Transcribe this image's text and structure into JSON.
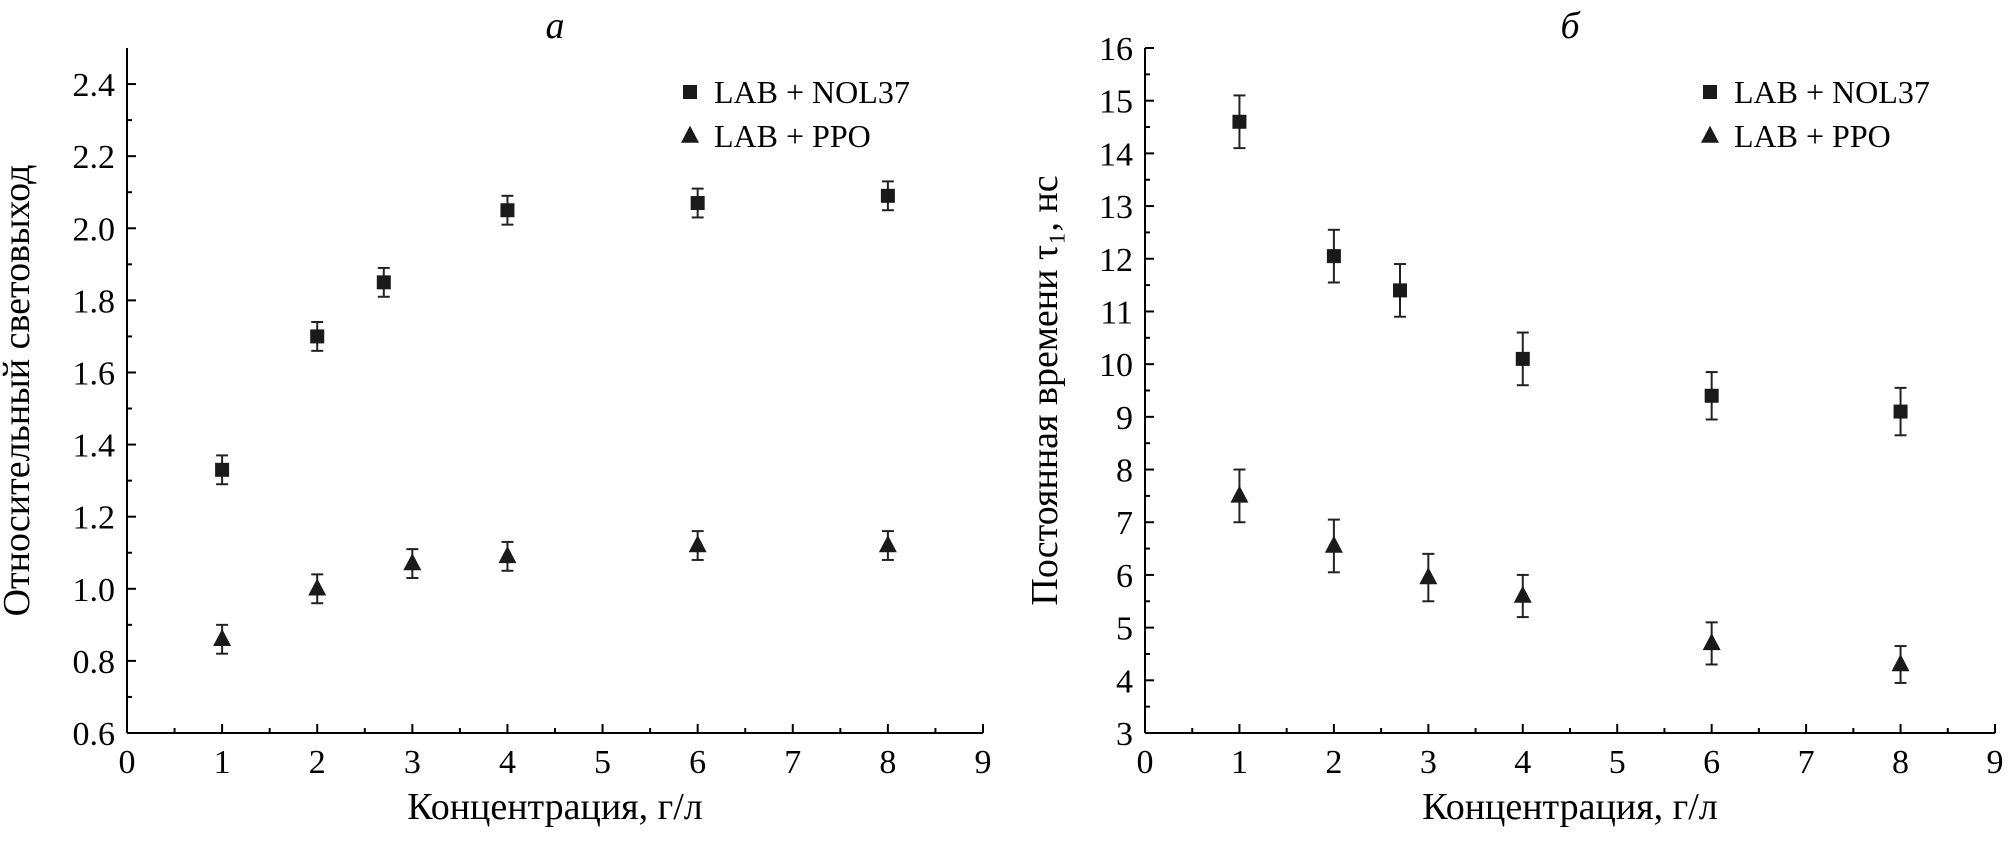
{
  "chart_data": [
    {
      "id": "a",
      "type": "scatter",
      "title": "a",
      "xlabel": "Концентрация, г/л",
      "ylabel": "Относительный световыход",
      "xlim": [
        0,
        9
      ],
      "ylim": [
        0.6,
        2.5
      ],
      "xticks": [
        0,
        1,
        2,
        3,
        4,
        5,
        6,
        7,
        8,
        9
      ],
      "xtick_labels": [
        "0",
        "1",
        "2",
        "3",
        "4",
        "5",
        "6",
        "7",
        "8",
        "9"
      ],
      "yticks": [
        0.6,
        0.8,
        1.0,
        1.2,
        1.4,
        1.6,
        1.8,
        2.0,
        2.2,
        2.4
      ],
      "ytick_labels": [
        "0.6",
        "0.8",
        "1.0",
        "1.2",
        "1.4",
        "1.6",
        "1.8",
        "2.0",
        "2.2",
        "2.4"
      ],
      "legend_position": "top-right",
      "series": [
        {
          "name": "LAB + NOL37",
          "marker": "square",
          "x": [
            1,
            2,
            2.7,
            4,
            6,
            8
          ],
          "y": [
            1.33,
            1.7,
            1.85,
            2.05,
            2.07,
            2.09
          ],
          "err": [
            0.04,
            0.04,
            0.04,
            0.04,
            0.04,
            0.04
          ]
        },
        {
          "name": "LAB + PPO",
          "marker": "triangle",
          "x": [
            1,
            2,
            3,
            4,
            6,
            8
          ],
          "y": [
            0.86,
            1.0,
            1.07,
            1.09,
            1.12,
            1.12
          ],
          "err": [
            0.04,
            0.04,
            0.04,
            0.04,
            0.04,
            0.04
          ]
        }
      ]
    },
    {
      "id": "b",
      "type": "scatter",
      "title": "б",
      "xlabel": "Концентрация, г/л",
      "ylabel": "Постоянная времени τ₁, нс",
      "xlim": [
        0,
        9
      ],
      "ylim": [
        3,
        16
      ],
      "xticks": [
        0,
        1,
        2,
        3,
        4,
        5,
        6,
        7,
        8,
        9
      ],
      "xtick_labels": [
        "0",
        "1",
        "2",
        "3",
        "4",
        "5",
        "6",
        "7",
        "8",
        "9"
      ],
      "yticks": [
        3,
        4,
        5,
        6,
        7,
        8,
        9,
        10,
        11,
        12,
        13,
        14,
        15,
        16
      ],
      "ytick_labels": [
        "3",
        "4",
        "5",
        "6",
        "7",
        "8",
        "9",
        "10",
        "11",
        "12",
        "13",
        "14",
        "15",
        "16"
      ],
      "legend_position": "top-right",
      "series": [
        {
          "name": "LAB + NOL37",
          "marker": "square",
          "x": [
            1,
            2,
            2.7,
            4,
            6,
            8
          ],
          "y": [
            14.6,
            12.05,
            11.4,
            10.1,
            9.4,
            9.1
          ],
          "err": [
            0.5,
            0.5,
            0.5,
            0.5,
            0.45,
            0.45
          ]
        },
        {
          "name": "LAB + PPO",
          "marker": "triangle",
          "x": [
            1,
            2,
            3,
            4,
            6,
            8
          ],
          "y": [
            7.5,
            6.55,
            5.95,
            5.6,
            4.7,
            4.3
          ],
          "err": [
            0.5,
            0.5,
            0.45,
            0.4,
            0.4,
            0.35
          ]
        }
      ]
    }
  ]
}
